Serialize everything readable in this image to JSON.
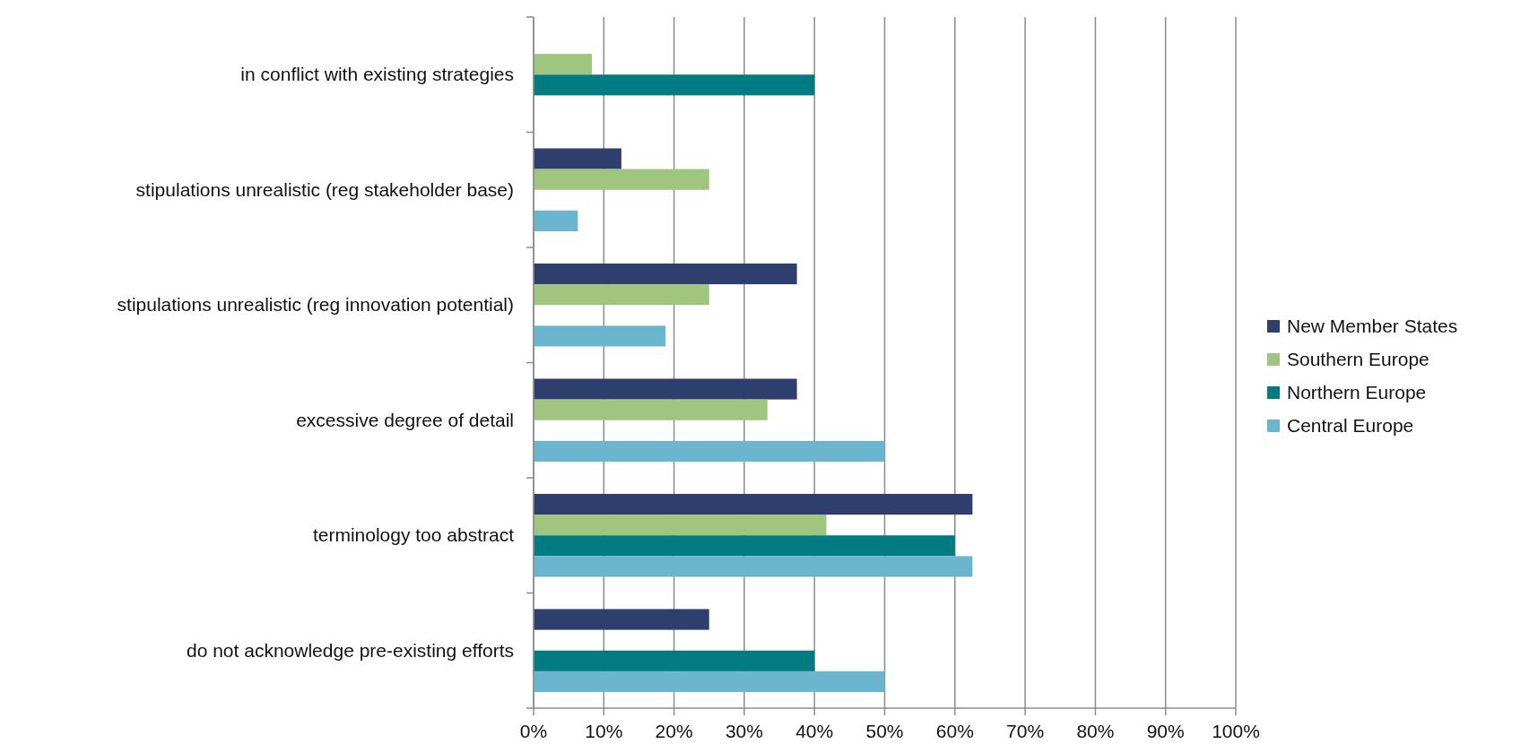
{
  "chart_data": {
    "type": "bar",
    "orientation": "horizontal",
    "categories": [
      "in conflict with existing strategies",
      "stipulations unrealistic (reg stakeholder base)",
      "stipulations unrealistic (reg innovation potential)",
      "excessive degree of detail",
      "terminology too abstract",
      "do not acknowledge pre-existing efforts"
    ],
    "series": [
      {
        "name": "New Member States",
        "color": "#2e3f6e",
        "values": [
          null,
          12.5,
          37.5,
          37.5,
          62.5,
          25
        ]
      },
      {
        "name": "Southern Europe",
        "color": "#9fc57f",
        "values": [
          8.3,
          25,
          25,
          33.3,
          41.7,
          null
        ]
      },
      {
        "name": "Northern Europe",
        "color": "#007b82",
        "values": [
          40,
          null,
          null,
          null,
          60,
          40
        ]
      },
      {
        "name": "Central Europe",
        "color": "#6cb5cf",
        "values": [
          null,
          6.3,
          18.8,
          50,
          62.5,
          50
        ]
      }
    ],
    "xlim": [
      0,
      100
    ],
    "xticks": [
      {
        "value": 0,
        "label": "0%"
      },
      {
        "value": 10,
        "label": "10%"
      },
      {
        "value": 20,
        "label": "20%"
      },
      {
        "value": 30,
        "label": "30%"
      },
      {
        "value": 40,
        "label": "40%"
      },
      {
        "value": 50,
        "label": "50%"
      },
      {
        "value": 60,
        "label": "60%"
      },
      {
        "value": 70,
        "label": "70%"
      },
      {
        "value": 80,
        "label": "80%"
      },
      {
        "value": 90,
        "label": "90%"
      },
      {
        "value": 100,
        "label": "100%"
      }
    ],
    "grid": "x",
    "legend": "right"
  }
}
